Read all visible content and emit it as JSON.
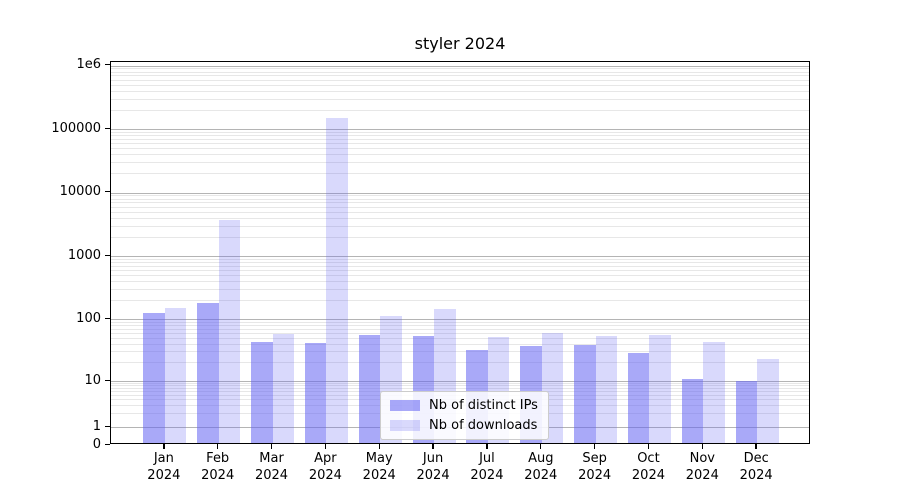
{
  "title": "styler 2024",
  "colors": {
    "distinct_ips": "rgba(98,98,242,0.55)",
    "downloads": "rgba(98,98,242,0.24)",
    "grid_major": "#b4b4b4",
    "grid_minor": "#e7e7e7",
    "axis": "#000000"
  },
  "legend": {
    "items": [
      {
        "label": "Nb of distinct IPs",
        "color_key": "distinct_ips"
      },
      {
        "label": "Nb of downloads",
        "color_key": "downloads"
      }
    ]
  },
  "axes": {
    "y_tick_labels": [
      "1e6",
      "100000",
      "10000",
      "1000",
      "100",
      "10",
      "1",
      "0"
    ],
    "x_tick_labels_line1": [
      "Jan",
      "Feb",
      "Mar",
      "Apr",
      "May",
      "Jun",
      "Jul",
      "Aug",
      "Sep",
      "Oct",
      "Nov",
      "Dec"
    ],
    "x_tick_labels_line2": [
      "2024",
      "2024",
      "2024",
      "2024",
      "2024",
      "2024",
      "2024",
      "2024",
      "2024",
      "2024",
      "2024",
      "2024"
    ]
  },
  "chart_data": {
    "type": "bar",
    "title": "styler 2024",
    "categories": [
      "Jan 2024",
      "Feb 2024",
      "Mar 2024",
      "Apr 2024",
      "May 2024",
      "Jun 2024",
      "Jul 2024",
      "Aug 2024",
      "Sep 2024",
      "Oct 2024",
      "Nov 2024",
      "Dec 2024"
    ],
    "series": [
      {
        "name": "Nb of distinct IPs",
        "values": [
          115,
          165,
          40,
          38,
          51,
          49,
          29,
          34,
          36,
          26,
          10,
          9
        ]
      },
      {
        "name": "Nb of downloads",
        "values": [
          137,
          3400,
          53,
          140000,
          103,
          132,
          47,
          56,
          49,
          52,
          39,
          21
        ]
      }
    ],
    "xlabel": "",
    "ylabel": "",
    "yscale": "symlog",
    "ylim": [
      0,
      1150000
    ],
    "yticks": [
      0,
      1,
      10,
      100,
      1000,
      10000,
      100000,
      1000000
    ],
    "grid": true,
    "legend_position": "lower center",
    "bar_group_width": 0.8
  }
}
